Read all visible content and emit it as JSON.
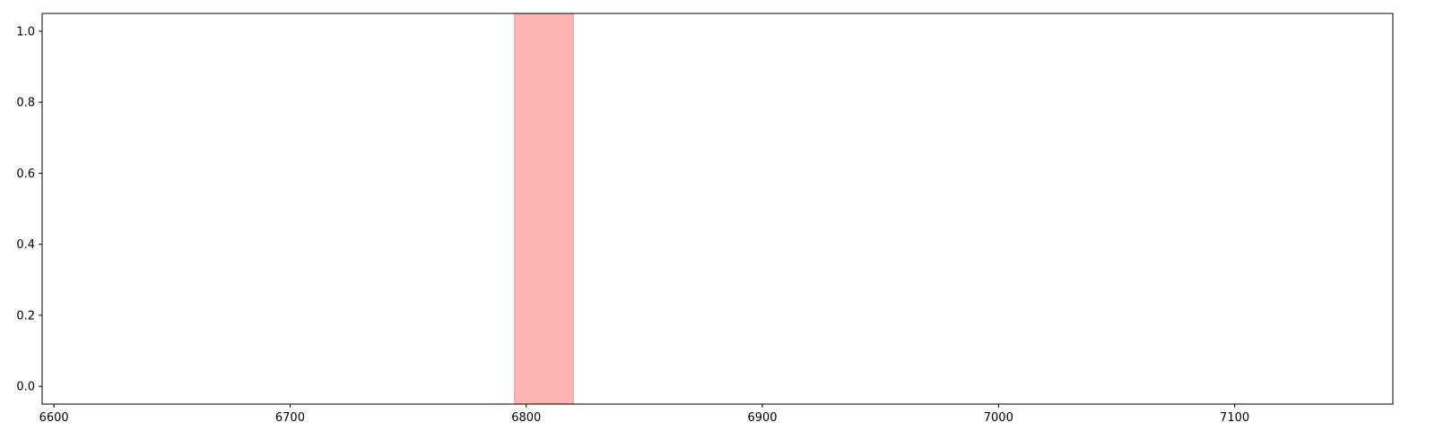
{
  "chart_data": {
    "type": "area",
    "title": "",
    "xlabel": "",
    "ylabel": "",
    "xlim": [
      6595,
      7167
    ],
    "ylim": [
      -0.05,
      1.05
    ],
    "x_ticks": [
      6600,
      6700,
      6800,
      6900,
      7000,
      7100
    ],
    "x_tick_labels": [
      "6600",
      "6700",
      "6800",
      "6900",
      "7000",
      "7100"
    ],
    "y_ticks": [
      0.0,
      0.2,
      0.4,
      0.6,
      0.8,
      1.0
    ],
    "y_tick_labels": [
      "0.0",
      "0.2",
      "0.4",
      "0.6",
      "0.8",
      "1.0"
    ],
    "grid": false,
    "spans": [
      {
        "x_start": 6795,
        "x_end": 6820,
        "y_start": -0.05,
        "y_end": 1.05,
        "color": "#ff0000",
        "alpha": 0.3
      }
    ]
  }
}
